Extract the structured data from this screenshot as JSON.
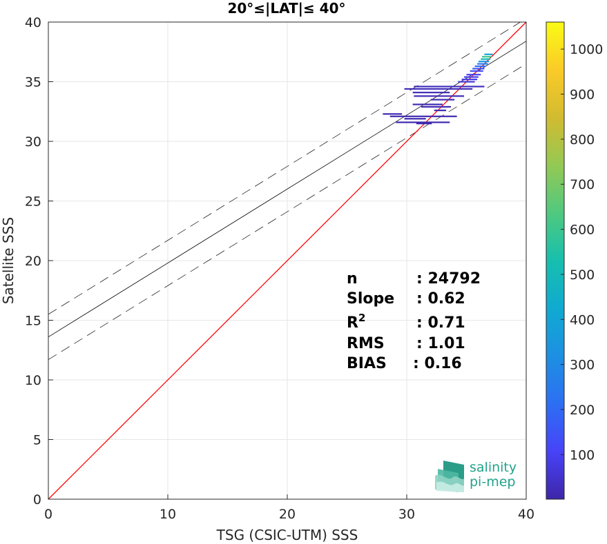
{
  "chart_data": {
    "type": "scatter",
    "title": "20°≤|LAT|≤ 40°",
    "xlabel": "TSG (CSIC-UTM) SSS",
    "ylabel": "Satellite SSS",
    "xlim": [
      0,
      40
    ],
    "ylim": [
      0,
      40
    ],
    "xticks": [
      "0",
      "10",
      "20",
      "30",
      "40"
    ],
    "yticks": [
      "0",
      "5",
      "10",
      "15",
      "20",
      "25",
      "30",
      "35",
      "40"
    ],
    "grid": true,
    "reference_line": {
      "name": "1:1",
      "color": "#ff0000",
      "slope": 1,
      "intercept": 0
    },
    "fit_line": {
      "slope": 0.62,
      "intercept": 13.6,
      "color": "#000000"
    },
    "envelope_lines": [
      {
        "slope": 0.62,
        "intercept": 15.5,
        "style": "dashed"
      },
      {
        "slope": 0.62,
        "intercept": 11.7,
        "style": "dashed"
      }
    ],
    "density_segments": [
      {
        "y": 37.3,
        "x0": 36.5,
        "x1": 37.2,
        "level": 400
      },
      {
        "y": 37.1,
        "x0": 36.3,
        "x1": 37.1,
        "level": 600
      },
      {
        "y": 36.9,
        "x0": 36.2,
        "x1": 37.0,
        "level": 500
      },
      {
        "y": 36.7,
        "x0": 36.0,
        "x1": 36.9,
        "level": 350
      },
      {
        "y": 36.5,
        "x0": 35.9,
        "x1": 36.8,
        "level": 250
      },
      {
        "y": 36.3,
        "x0": 35.7,
        "x1": 36.6,
        "level": 200
      },
      {
        "y": 36.1,
        "x0": 35.5,
        "x1": 36.5,
        "level": 150
      },
      {
        "y": 35.9,
        "x0": 35.3,
        "x1": 36.4,
        "level": 120
      },
      {
        "y": 35.6,
        "x0": 35.0,
        "x1": 36.2,
        "level": 100
      },
      {
        "y": 35.4,
        "x0": 34.8,
        "x1": 36.0,
        "level": 90
      },
      {
        "y": 35.2,
        "x0": 34.6,
        "x1": 35.9,
        "level": 80
      },
      {
        "y": 35.0,
        "x0": 34.3,
        "x1": 35.7,
        "level": 70
      },
      {
        "y": 34.6,
        "x0": 30.6,
        "x1": 36.5,
        "level": 30
      },
      {
        "y": 34.4,
        "x0": 29.8,
        "x1": 35.5,
        "level": 25
      },
      {
        "y": 34.1,
        "x0": 30.5,
        "x1": 33.6,
        "level": 20
      },
      {
        "y": 33.8,
        "x0": 30.6,
        "x1": 34.8,
        "level": 20
      },
      {
        "y": 33.5,
        "x0": 32.0,
        "x1": 34.0,
        "level": 15
      },
      {
        "y": 33.1,
        "x0": 30.5,
        "x1": 33.0,
        "level": 15
      },
      {
        "y": 32.9,
        "x0": 31.2,
        "x1": 33.7,
        "level": 15
      },
      {
        "y": 32.6,
        "x0": 32.3,
        "x1": 33.3,
        "level": 15
      },
      {
        "y": 32.3,
        "x0": 28.0,
        "x1": 29.6,
        "level": 10
      },
      {
        "y": 32.1,
        "x0": 28.6,
        "x1": 34.2,
        "level": 10
      },
      {
        "y": 31.9,
        "x0": 29.8,
        "x1": 31.6,
        "level": 10
      },
      {
        "y": 31.6,
        "x0": 29.1,
        "x1": 33.6,
        "level": 10
      },
      {
        "y": 31.5,
        "x0": 30.8,
        "x1": 32.1,
        "level": 10
      }
    ],
    "colorbar": {
      "ticks": [
        "100",
        "200",
        "300",
        "400",
        "500",
        "600",
        "700",
        "800",
        "900",
        "1000"
      ],
      "min": 1,
      "max": 1060,
      "colormap": [
        "#3e26a8",
        "#4743f8",
        "#2d6ff3",
        "#1d90e2",
        "#10aad1",
        "#17bfae",
        "#50c97f",
        "#94c954",
        "#d2bb30",
        "#fbcb28",
        "#f9fb15"
      ]
    }
  },
  "stats": [
    {
      "label": "n",
      "value": ": 24792"
    },
    {
      "label": "Slope",
      "value": ": 0.62"
    },
    {
      "label": "R",
      "sup": "2",
      "value": ": 0.71"
    },
    {
      "label": "RMS",
      "value": ": 1.01"
    },
    {
      "label": "BIAS",
      "value": ": 0.16"
    }
  ],
  "logo": {
    "line1": "salinity",
    "line2": "pi-mep",
    "color": "#22a28a"
  }
}
